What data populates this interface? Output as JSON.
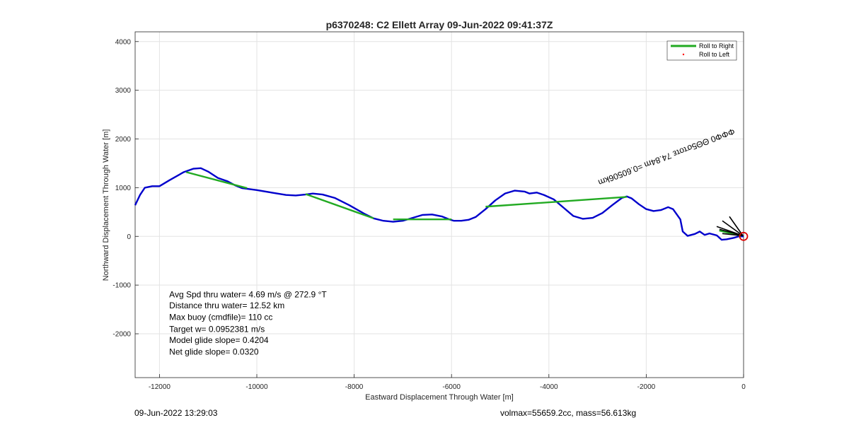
{
  "chart_data": {
    "type": "line",
    "title": "p6370248: C2 Ellett Array 09-Jun-2022 09:41:37Z",
    "xlabel": "Eastward Displacement Through Water [m]",
    "ylabel": "Northward Displacement Through Water [m]",
    "xlim": [
      -12500,
      0
    ],
    "ylim": [
      -2900,
      4200
    ],
    "xticks": [
      -12000,
      -10000,
      -8000,
      -6000,
      -4000,
      -2000,
      0
    ],
    "yticks": [
      -2000,
      -1000,
      0,
      1000,
      2000,
      3000,
      4000
    ],
    "xtick_labels": [
      "-12000",
      "-10000",
      "-8000",
      "-6000",
      "-4000",
      "-2000",
      "0"
    ],
    "ytick_labels": [
      "-2000",
      "-1000",
      "0",
      "1000",
      "2000",
      "3000",
      "4000"
    ],
    "grid": true,
    "legend_position": "top-right",
    "legend": [
      "Roll to Right",
      "Roll to Left"
    ],
    "series": [
      {
        "name": "Roll to Right",
        "color": "#22aa22",
        "segments": [
          [
            [
              -11450,
              1320
            ],
            [
              -10200,
              990
            ]
          ],
          [
            [
              -9000,
              870
            ],
            [
              -7600,
              370
            ]
          ],
          [
            [
              -7200,
              350
            ],
            [
              -6000,
              350
            ]
          ],
          [
            [
              -5300,
              610
            ],
            [
              -2400,
              810
            ]
          ],
          [
            [
              -500,
              120
            ],
            [
              -50,
              10
            ]
          ]
        ]
      },
      {
        "name": "Roll to Left",
        "color": "#ff0000",
        "points": []
      },
      {
        "name": "",
        "color": "#0000cc",
        "points": [
          [
            -12500,
            640
          ],
          [
            -12400,
            850
          ],
          [
            -12300,
            1000
          ],
          [
            -12150,
            1030
          ],
          [
            -12000,
            1030
          ],
          [
            -11800,
            1150
          ],
          [
            -11500,
            1320
          ],
          [
            -11300,
            1390
          ],
          [
            -11150,
            1400
          ],
          [
            -11000,
            1330
          ],
          [
            -10800,
            1200
          ],
          [
            -10600,
            1130
          ],
          [
            -10450,
            1050
          ],
          [
            -10300,
            990
          ],
          [
            -10000,
            950
          ],
          [
            -9700,
            900
          ],
          [
            -9400,
            850
          ],
          [
            -9200,
            840
          ],
          [
            -9000,
            860
          ],
          [
            -8850,
            880
          ],
          [
            -8650,
            860
          ],
          [
            -8400,
            790
          ],
          [
            -8100,
            640
          ],
          [
            -7800,
            470
          ],
          [
            -7600,
            370
          ],
          [
            -7400,
            320
          ],
          [
            -7200,
            300
          ],
          [
            -7000,
            320
          ],
          [
            -6800,
            380
          ],
          [
            -6600,
            440
          ],
          [
            -6400,
            450
          ],
          [
            -6200,
            410
          ],
          [
            -6050,
            350
          ],
          [
            -5950,
            320
          ],
          [
            -5800,
            320
          ],
          [
            -5650,
            340
          ],
          [
            -5500,
            400
          ],
          [
            -5300,
            560
          ],
          [
            -5100,
            740
          ],
          [
            -4900,
            880
          ],
          [
            -4700,
            940
          ],
          [
            -4500,
            920
          ],
          [
            -4400,
            880
          ],
          [
            -4250,
            900
          ],
          [
            -4100,
            850
          ],
          [
            -3900,
            760
          ],
          [
            -3700,
            590
          ],
          [
            -3500,
            420
          ],
          [
            -3300,
            360
          ],
          [
            -3100,
            380
          ],
          [
            -2900,
            480
          ],
          [
            -2700,
            640
          ],
          [
            -2500,
            790
          ],
          [
            -2400,
            820
          ],
          [
            -2300,
            780
          ],
          [
            -2150,
            660
          ],
          [
            -2000,
            560
          ],
          [
            -1850,
            520
          ],
          [
            -1700,
            540
          ],
          [
            -1550,
            600
          ],
          [
            -1450,
            560
          ],
          [
            -1300,
            350
          ],
          [
            -1250,
            100
          ],
          [
            -1150,
            10
          ],
          [
            -1000,
            50
          ],
          [
            -900,
            100
          ],
          [
            -800,
            30
          ],
          [
            -700,
            60
          ],
          [
            -550,
            20
          ],
          [
            -450,
            -70
          ],
          [
            -350,
            -60
          ],
          [
            -200,
            -30
          ],
          [
            -100,
            0
          ],
          [
            0,
            0
          ]
        ]
      }
    ],
    "markers": [
      {
        "label": "end",
        "x": 0,
        "y": 0,
        "shape": "circle",
        "color": "#dd0000"
      }
    ],
    "annotations": [
      {
        "text": "Avg Spd thru water=  4.69 m/s @ 272.9 °T",
        "x": -11800,
        "y": -1250
      },
      {
        "text": "Distance thru water= 12.52 km",
        "x": -11800,
        "y": -1480
      },
      {
        "text": "Max buoy (cmdfile)= 110 cc",
        "x": -11800,
        "y": -1720
      },
      {
        "text": "Target w= 0.0952381 m/s",
        "x": -11800,
        "y": -1960
      },
      {
        "text": "Model glide slope= 0.4204",
        "x": -11800,
        "y": -2190
      },
      {
        "text": "Net glide slope= 0.0320",
        "x": -11800,
        "y": -2430
      }
    ],
    "rotated_label": {
      "text": "ΦΦΦ0 ΘΘ5στοτε 74.84m =0.60506km",
      "x": -3000,
      "y": 1150,
      "rotation_deg": 180
    }
  },
  "footer": {
    "left": "09-Jun-2022 13:29:03",
    "right": "volmax=55659.2cc, mass=56.613kg"
  }
}
